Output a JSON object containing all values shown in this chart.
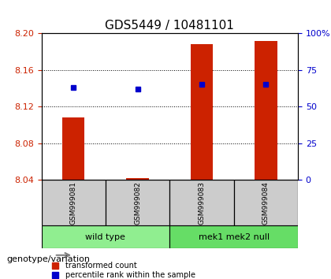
{
  "title": "GDS5449 / 10481101",
  "samples": [
    "GSM999081",
    "GSM999082",
    "GSM999083",
    "GSM999084"
  ],
  "groups": [
    "wild type",
    "wild type",
    "mek1 mek2 null",
    "mek1 mek2 null"
  ],
  "group_labels": [
    "wild type",
    "mek1 mek2 null"
  ],
  "group_colors": [
    "#90EE90",
    "#00CC44"
  ],
  "bar_values": [
    8.108,
    8.042,
    8.188,
    8.192
  ],
  "percentile_values": [
    63,
    62,
    65,
    65
  ],
  "ylim_left": [
    8.04,
    8.2
  ],
  "ylim_right": [
    0,
    100
  ],
  "yticks_left": [
    8.04,
    8.08,
    8.12,
    8.16,
    8.2
  ],
  "yticks_right": [
    0,
    25,
    50,
    75,
    100
  ],
  "bar_color": "#CC2200",
  "dot_color": "#0000CC",
  "bar_bottom": 8.04,
  "ylabel_left_color": "#CC2200",
  "ylabel_right_color": "#0000CC",
  "legend_bar_label": "transformed count",
  "legend_dot_label": "percentile rank within the sample",
  "genotype_label": "genotype/variation",
  "title_fontsize": 11,
  "tick_fontsize": 8,
  "label_fontsize": 8
}
